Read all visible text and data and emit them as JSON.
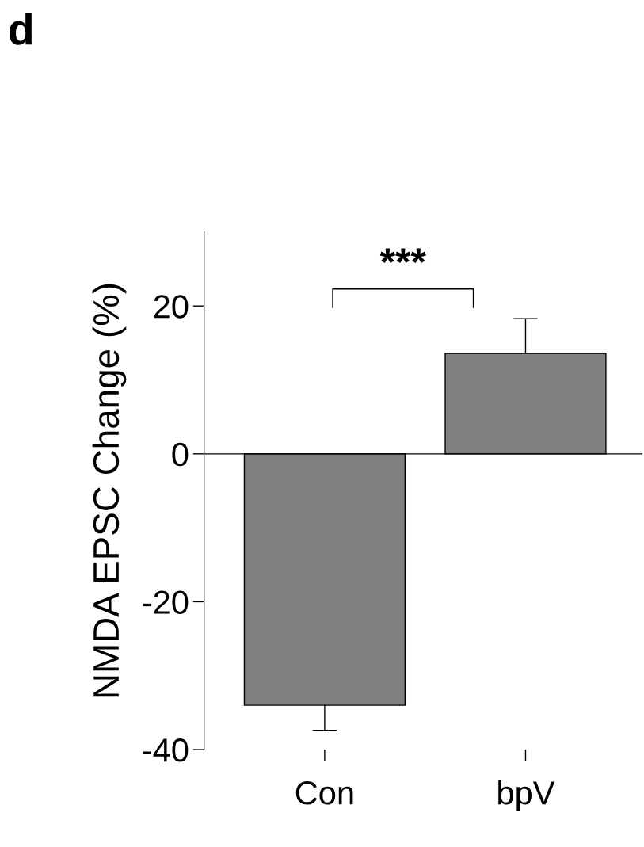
{
  "chart_data": {
    "type": "bar",
    "categories": [
      "Con",
      "bpV"
    ],
    "values": [
      -34.0,
      13.6
    ],
    "errors": [
      [
        -37.4,
        -34.0
      ],
      [
        13.6,
        18.3
      ]
    ],
    "color": "#808080",
    "ylabel": "NMDA EPSC Change (%)",
    "ylim": [
      -40,
      30
    ],
    "yticks": [
      -40,
      -20,
      0,
      20
    ],
    "annotations": [
      "d",
      "***"
    ]
  }
}
